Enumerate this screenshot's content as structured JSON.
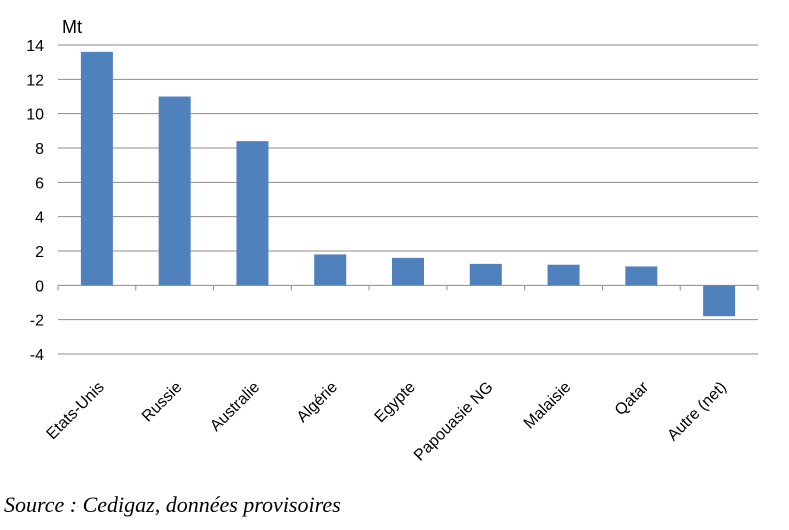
{
  "chart_data": {
    "type": "bar",
    "ylabel": "Mt",
    "categories": [
      "Etats-Unis",
      "Russie",
      "Australie",
      "Algérie",
      "Egypte",
      "Papouasie NG",
      "Malaisie",
      "Qatar",
      "Autre (net)"
    ],
    "values": [
      13.6,
      11.0,
      8.4,
      1.8,
      1.6,
      1.25,
      1.2,
      1.1,
      -1.8
    ],
    "ylim": [
      -4,
      14
    ],
    "yticks": [
      -4,
      -2,
      0,
      2,
      4,
      6,
      8,
      10,
      12,
      14
    ],
    "grid": true,
    "legend": "none",
    "bar_color": "#4F81BD"
  },
  "source_note": "Source : Cedigaz, données provisoires"
}
